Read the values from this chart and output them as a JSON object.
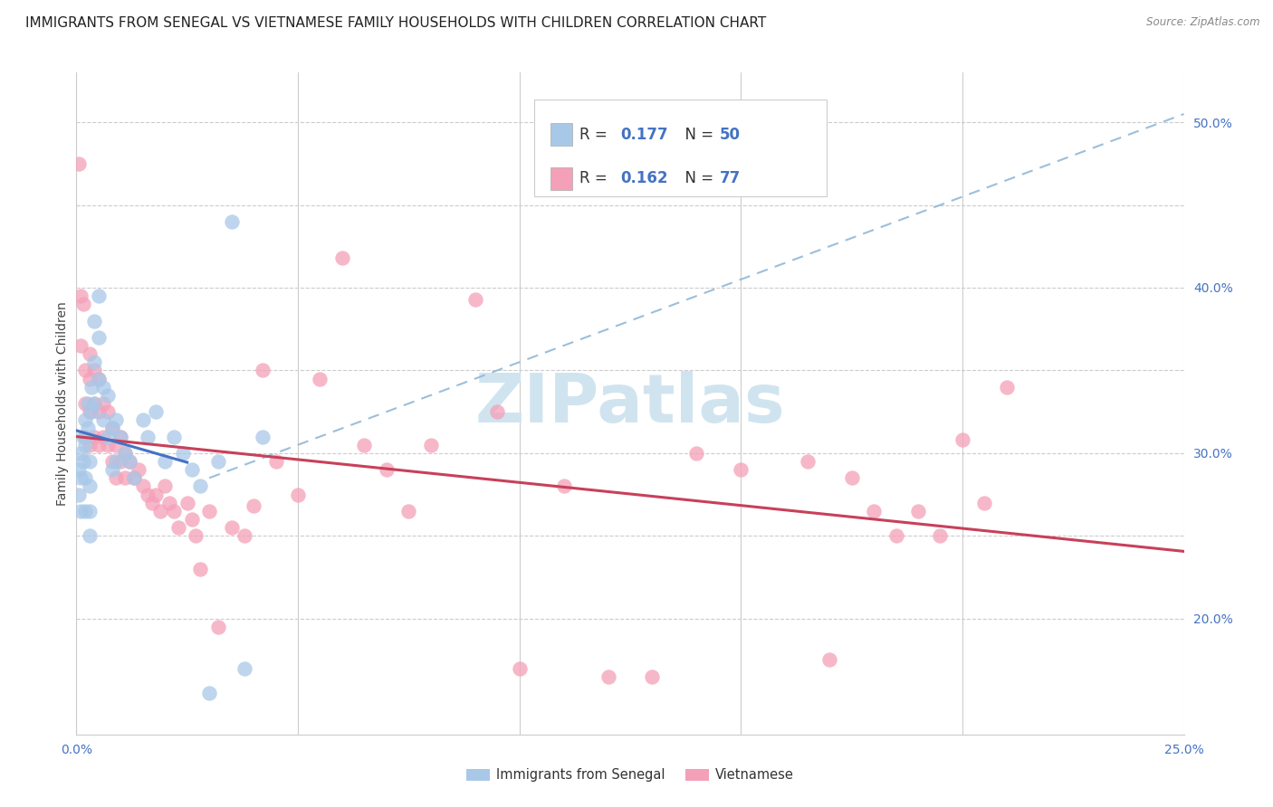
{
  "title": "IMMIGRANTS FROM SENEGAL VS VIETNAMESE FAMILY HOUSEHOLDS WITH CHILDREN CORRELATION CHART",
  "source": "Source: ZipAtlas.com",
  "ylabel": "Family Households with Children",
  "xlim": [
    0.0,
    0.25
  ],
  "ylim": [
    0.13,
    0.53
  ],
  "x_ticks": [
    0.0,
    0.05,
    0.1,
    0.15,
    0.2,
    0.25
  ],
  "x_tick_labels": [
    "0.0%",
    "",
    "",
    "",
    "",
    "25.0%"
  ],
  "y_ticks_right": [
    0.2,
    0.25,
    0.3,
    0.35,
    0.4,
    0.45,
    0.5
  ],
  "y_tick_labels_right": [
    "20.0%",
    "",
    "30.0%",
    "",
    "40.0%",
    "",
    "50.0%"
  ],
  "legend_labels": [
    "Immigrants from Senegal",
    "Vietnamese"
  ],
  "R_senegal": "0.177",
  "N_senegal": "50",
  "R_vietnamese": "0.162",
  "N_vietnamese": "77",
  "color_senegal": "#a8c8e8",
  "color_vietnamese": "#f4a0b8",
  "color_line_senegal": "#4472c4",
  "color_line_vietnamese": "#c8405a",
  "color_dashed_line": "#90b8d8",
  "title_fontsize": 11,
  "axis_label_fontsize": 10,
  "tick_fontsize": 10,
  "watermark_text": "ZIPatlas",
  "watermark_color": "#d0e4f0",
  "senegal_x": [
    0.0005,
    0.0005,
    0.001,
    0.001,
    0.001,
    0.0015,
    0.0015,
    0.002,
    0.002,
    0.002,
    0.002,
    0.0025,
    0.0025,
    0.003,
    0.003,
    0.003,
    0.003,
    0.0035,
    0.0035,
    0.004,
    0.004,
    0.004,
    0.005,
    0.005,
    0.005,
    0.006,
    0.006,
    0.007,
    0.007,
    0.008,
    0.008,
    0.009,
    0.009,
    0.01,
    0.011,
    0.012,
    0.013,
    0.015,
    0.016,
    0.018,
    0.02,
    0.022,
    0.024,
    0.026,
    0.028,
    0.03,
    0.032,
    0.035,
    0.038,
    0.042
  ],
  "senegal_y": [
    0.29,
    0.275,
    0.3,
    0.285,
    0.265,
    0.31,
    0.295,
    0.32,
    0.305,
    0.285,
    0.265,
    0.33,
    0.315,
    0.295,
    0.28,
    0.265,
    0.25,
    0.34,
    0.325,
    0.38,
    0.355,
    0.33,
    0.395,
    0.37,
    0.345,
    0.34,
    0.32,
    0.335,
    0.31,
    0.315,
    0.29,
    0.32,
    0.295,
    0.31,
    0.3,
    0.295,
    0.285,
    0.32,
    0.31,
    0.325,
    0.295,
    0.31,
    0.3,
    0.29,
    0.28,
    0.155,
    0.295,
    0.44,
    0.17,
    0.31
  ],
  "vietnamese_x": [
    0.0005,
    0.001,
    0.001,
    0.0015,
    0.002,
    0.002,
    0.002,
    0.003,
    0.003,
    0.003,
    0.003,
    0.004,
    0.004,
    0.004,
    0.005,
    0.005,
    0.005,
    0.006,
    0.006,
    0.007,
    0.007,
    0.008,
    0.008,
    0.009,
    0.009,
    0.01,
    0.01,
    0.011,
    0.011,
    0.012,
    0.013,
    0.014,
    0.015,
    0.016,
    0.017,
    0.018,
    0.019,
    0.02,
    0.021,
    0.022,
    0.023,
    0.025,
    0.026,
    0.027,
    0.028,
    0.03,
    0.032,
    0.035,
    0.038,
    0.04,
    0.042,
    0.045,
    0.05,
    0.055,
    0.06,
    0.065,
    0.07,
    0.075,
    0.08,
    0.09,
    0.095,
    0.1,
    0.11,
    0.12,
    0.13,
    0.14,
    0.15,
    0.165,
    0.17,
    0.175,
    0.18,
    0.185,
    0.19,
    0.195,
    0.2,
    0.205,
    0.21
  ],
  "vietnamese_y": [
    0.475,
    0.395,
    0.365,
    0.39,
    0.35,
    0.33,
    0.31,
    0.36,
    0.345,
    0.325,
    0.305,
    0.35,
    0.33,
    0.31,
    0.345,
    0.325,
    0.305,
    0.33,
    0.31,
    0.325,
    0.305,
    0.315,
    0.295,
    0.305,
    0.285,
    0.31,
    0.295,
    0.3,
    0.285,
    0.295,
    0.285,
    0.29,
    0.28,
    0.275,
    0.27,
    0.275,
    0.265,
    0.28,
    0.27,
    0.265,
    0.255,
    0.27,
    0.26,
    0.25,
    0.23,
    0.265,
    0.195,
    0.255,
    0.25,
    0.268,
    0.35,
    0.295,
    0.275,
    0.345,
    0.418,
    0.305,
    0.29,
    0.265,
    0.305,
    0.393,
    0.325,
    0.17,
    0.28,
    0.165,
    0.165,
    0.3,
    0.29,
    0.295,
    0.175,
    0.285,
    0.265,
    0.25,
    0.265,
    0.25,
    0.308,
    0.27,
    0.34
  ],
  "dashed_line_x0": 0.03,
  "dashed_line_y0": 0.285,
  "dashed_line_x1": 0.25,
  "dashed_line_y1": 0.505
}
